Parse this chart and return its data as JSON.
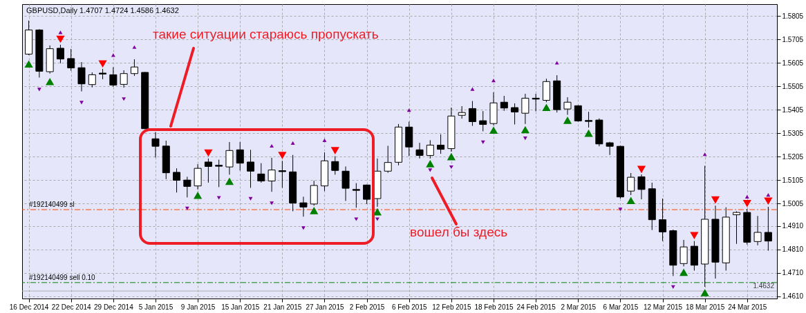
{
  "chart_data": {
    "type": "candlestick",
    "title": "GBPUSD,Daily 1.4707 1.4724 1.4586 1.4632",
    "categories": [
      "16 Dec 2014",
      null,
      null,
      null,
      "22 Dec 2014",
      null,
      null,
      null,
      "29 Dec 2014",
      null,
      null,
      null,
      "5 Jan 2015",
      null,
      null,
      null,
      "9 Jan 2015",
      null,
      null,
      null,
      "15 Jan 2015",
      null,
      null,
      null,
      "21 Jan 2015",
      null,
      null,
      null,
      "27 Jan 2015",
      null,
      null,
      null,
      "2 Feb 2015",
      null,
      null,
      null,
      "6 Feb 2015",
      null,
      null,
      null,
      "12 Feb 2015",
      null,
      null,
      null,
      "18 Feb 2015",
      null,
      null,
      null,
      "24 Feb 2015",
      null,
      null,
      null,
      "2 Mar 2015",
      null,
      null,
      null,
      "6 Mar 2015",
      null,
      null,
      null,
      "12 Mar 2015",
      null,
      null,
      null,
      "18 Mar 2015",
      null,
      null,
      null,
      "24 Mar 2015",
      null,
      null
    ],
    "ohlc": [
      [
        1.5642,
        1.5785,
        1.5638,
        1.5745
      ],
      [
        1.5745,
        1.5748,
        1.5542,
        1.5569
      ],
      [
        1.5567,
        1.5679,
        1.5559,
        1.5665
      ],
      [
        1.5667,
        1.5682,
        1.5603,
        1.5621
      ],
      [
        1.5623,
        1.5664,
        1.5571,
        1.5583
      ],
      [
        1.5584,
        1.5608,
        1.5483,
        1.5515
      ],
      [
        1.5512,
        1.5564,
        1.55,
        1.5554
      ],
      [
        1.5561,
        1.5579,
        1.5535,
        1.5557
      ],
      [
        1.5554,
        1.5586,
        1.5503,
        1.551
      ],
      [
        1.5513,
        1.5573,
        1.5499,
        1.5559
      ],
      [
        1.5559,
        1.562,
        1.5549,
        1.5587
      ],
      [
        1.5564,
        1.5566,
        1.5322,
        1.5324
      ],
      [
        1.5281,
        1.531,
        1.5201,
        1.5249
      ],
      [
        1.525,
        1.5273,
        1.5109,
        1.5136
      ],
      [
        1.5138,
        1.5155,
        1.5052,
        1.5104
      ],
      [
        1.5105,
        1.5119,
        1.5031,
        1.5078
      ],
      [
        1.508,
        1.5173,
        1.5065,
        1.5155
      ],
      [
        1.5182,
        1.5197,
        1.5094,
        1.5163
      ],
      [
        1.5168,
        1.5192,
        1.5075,
        1.5164
      ],
      [
        1.5161,
        1.5267,
        1.5128,
        1.5231
      ],
      [
        1.5234,
        1.5267,
        1.5146,
        1.5177
      ],
      [
        1.5182,
        1.5234,
        1.5072,
        1.5143
      ],
      [
        1.5131,
        1.5177,
        1.5094,
        1.5101
      ],
      [
        1.5101,
        1.52,
        1.5055,
        1.5148
      ],
      [
        1.5145,
        1.5187,
        1.5072,
        1.5141
      ],
      [
        1.514,
        1.5212,
        1.4972,
        1.5007
      ],
      [
        1.5008,
        1.5034,
        1.4949,
        1.499
      ],
      [
        1.5003,
        1.5102,
        1.4996,
        1.5082
      ],
      [
        1.508,
        1.5223,
        1.5058,
        1.5187
      ],
      [
        1.5184,
        1.5207,
        1.5128,
        1.5146
      ],
      [
        1.5143,
        1.5163,
        1.5016,
        1.507
      ],
      [
        1.5065,
        1.5092,
        1.4987,
        1.5061
      ],
      [
        1.5084,
        1.5086,
        1.5003,
        1.5023
      ],
      [
        1.5026,
        1.5197,
        1.4991,
        1.5143
      ],
      [
        1.5143,
        1.5251,
        1.5136,
        1.518
      ],
      [
        1.5181,
        1.5344,
        1.5168,
        1.5331
      ],
      [
        1.5331,
        1.5354,
        1.5207,
        1.5246
      ],
      [
        1.5234,
        1.5264,
        1.5197,
        1.521
      ],
      [
        1.521,
        1.5275,
        1.5197,
        1.5254
      ],
      [
        1.5254,
        1.53,
        1.5217,
        1.5236
      ],
      [
        1.5239,
        1.5414,
        1.5226,
        1.5378
      ],
      [
        1.5381,
        1.542,
        1.5367,
        1.5393
      ],
      [
        1.541,
        1.5442,
        1.5336,
        1.5354
      ],
      [
        1.5358,
        1.5399,
        1.5313,
        1.5342
      ],
      [
        1.5346,
        1.5479,
        1.5339,
        1.5434
      ],
      [
        1.5437,
        1.5464,
        1.54,
        1.5412
      ],
      [
        1.5414,
        1.5432,
        1.5342,
        1.5395
      ],
      [
        1.539,
        1.5473,
        1.5344,
        1.5454
      ],
      [
        1.5454,
        1.5473,
        1.5398,
        1.545
      ],
      [
        1.5445,
        1.5537,
        1.5437,
        1.5525
      ],
      [
        1.5528,
        1.5552,
        1.5393,
        1.5405
      ],
      [
        1.5408,
        1.5458,
        1.5383,
        1.5437
      ],
      [
        1.5422,
        1.5424,
        1.5354,
        1.5357
      ],
      [
        1.5359,
        1.5396,
        1.5329,
        1.5355
      ],
      [
        1.5361,
        1.5368,
        1.5249,
        1.5259
      ],
      [
        1.5264,
        1.5268,
        1.5212,
        1.5249
      ],
      [
        1.5249,
        1.5251,
        1.5026,
        1.5033
      ],
      [
        1.5058,
        1.5135,
        1.5041,
        1.5117
      ],
      [
        1.5119,
        1.5129,
        1.5023,
        1.5065
      ],
      [
        1.5068,
        1.5094,
        1.4892,
        1.4936
      ],
      [
        1.4936,
        1.5026,
        1.4845,
        1.4884
      ],
      [
        1.4889,
        1.4894,
        1.4696,
        1.4742
      ],
      [
        1.4749,
        1.485,
        1.4737,
        1.482
      ],
      [
        1.4823,
        1.4845,
        1.4719,
        1.4742
      ],
      [
        1.4747,
        1.5166,
        1.465,
        1.4938
      ],
      [
        1.4938,
        1.4996,
        1.4685,
        1.4755
      ],
      [
        1.4752,
        1.4989,
        1.4719,
        1.4947
      ],
      [
        1.4957,
        1.4972,
        1.4833,
        1.4967
      ],
      [
        1.4967,
        1.4982,
        1.483,
        1.484
      ],
      [
        1.4843,
        1.4952,
        1.4827,
        1.4882
      ],
      [
        1.4882,
        1.4991,
        1.4804,
        1.4845
      ]
    ],
    "series": [
      {
        "type": "scatter",
        "marker": "triangle",
        "color": "#008000",
        "values": [
          1.56,
          null,
          1.5525,
          null,
          null,
          null,
          null,
          null,
          null,
          null,
          null,
          null,
          null,
          null,
          null,
          null,
          1.504,
          null,
          null,
          1.51,
          null,
          null,
          null,
          null,
          null,
          null,
          null,
          1.4975,
          null,
          null,
          null,
          null,
          null,
          1.497,
          null,
          null,
          null,
          null,
          1.5175,
          null,
          1.5205,
          null,
          null,
          null,
          1.5318,
          null,
          null,
          1.532,
          null,
          1.5415,
          null,
          1.536,
          null,
          1.5305,
          null,
          null,
          null,
          1.5018,
          null,
          null,
          null,
          null,
          1.4712,
          null,
          1.4625,
          null,
          null,
          null,
          null,
          null,
          null
        ]
      },
      {
        "type": "scatter",
        "marker": "triangle-down",
        "color": "#ff0000",
        "values": [
          null,
          null,
          null,
          1.5705,
          null,
          null,
          null,
          1.56,
          null,
          null,
          null,
          null,
          null,
          null,
          null,
          null,
          null,
          1.522,
          null,
          null,
          null,
          null,
          null,
          null,
          1.521,
          null,
          null,
          null,
          null,
          1.523,
          null,
          null,
          null,
          null,
          null,
          null,
          null,
          null,
          null,
          null,
          null,
          null,
          null,
          null,
          null,
          null,
          null,
          null,
          null,
          null,
          null,
          null,
          null,
          null,
          null,
          null,
          null,
          null,
          1.515,
          null,
          null,
          null,
          null,
          1.4868,
          null,
          1.502,
          null,
          null,
          1.5005,
          null,
          1.5015
        ]
      },
      {
        "type": "scatter",
        "marker": "triangle",
        "color": "#8000a0",
        "values": [
          null,
          null,
          null,
          1.5735,
          null,
          null,
          null,
          null,
          1.5638,
          null,
          1.5672,
          null,
          null,
          null,
          null,
          null,
          null,
          null,
          null,
          null,
          null,
          null,
          null,
          1.5251,
          null,
          1.5263,
          null,
          null,
          1.5275,
          null,
          null,
          null,
          null,
          null,
          null,
          null,
          1.5403,
          null,
          null,
          null,
          null,
          null,
          1.5493,
          null,
          1.553,
          null,
          null,
          null,
          null,
          null,
          1.5605,
          null,
          null,
          null,
          null,
          null,
          null,
          null,
          null,
          null,
          null,
          null,
          null,
          null,
          1.5215,
          null,
          null,
          null,
          1.5034,
          null,
          1.5042
        ]
      },
      {
        "type": "scatter",
        "marker": "triangle-down",
        "color": "#8000a0",
        "values": [
          null,
          1.5491,
          null,
          null,
          null,
          1.5435,
          null,
          null,
          null,
          1.545,
          null,
          null,
          null,
          null,
          null,
          1.4984,
          null,
          null,
          1.5029,
          null,
          null,
          1.5025,
          null,
          1.5006,
          null,
          null,
          1.49,
          null,
          null,
          null,
          null,
          1.4938,
          null,
          1.4938,
          null,
          null,
          null,
          null,
          1.5147,
          null,
          1.516,
          null,
          null,
          1.5266,
          null,
          null,
          null,
          1.5283,
          null,
          null,
          null,
          null,
          null,
          null,
          null,
          null,
          1.498,
          null,
          null,
          null,
          null,
          1.4649,
          null,
          null,
          null,
          null,
          null,
          null,
          null,
          null,
          null
        ]
      }
    ],
    "ylim": [
      1.46,
      1.5855
    ],
    "yticks": [
      {
        "value": 1.461,
        "label": "1.4610"
      },
      {
        "value": 1.471,
        "label": "1.4710"
      },
      {
        "value": 1.481,
        "label": "1.4810"
      },
      {
        "value": 1.491,
        "label": "1.4910"
      },
      1.5005,
      1.5105,
      1.5205,
      1.5305,
      1.5405,
      1.5505,
      1.5605,
      1.5705,
      1.5805
    ],
    "ref_lines": [
      {
        "axis": "y",
        "value": 1.4979,
        "label": "#192140499 sl",
        "color": "#ff4500",
        "line_style": "dashed"
      },
      {
        "axis": "y",
        "value": 1.4668,
        "label": "#192140499 sell 0.10",
        "color": "#008000",
        "line_style": "dashed"
      },
      {
        "axis": "y",
        "value": 1.4632,
        "label": "1.4632",
        "color": "#b0b0b0",
        "line_style": "solid"
      }
    ],
    "annotations": [
      "такие ситуации стараюсь пропускать",
      "вошел бы здесь"
    ],
    "grid": true
  }
}
